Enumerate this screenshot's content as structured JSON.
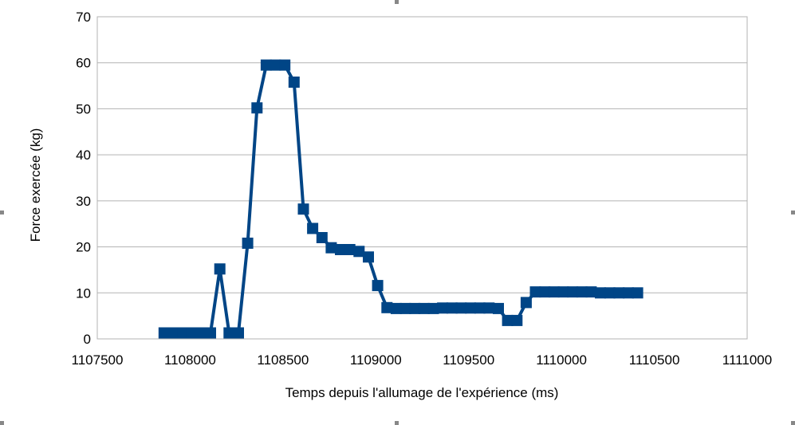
{
  "chart_data": {
    "type": "line",
    "xlabel": "Temps depuis l'allumage de l'expérience (ms)",
    "ylabel": "Force exercée (kg)",
    "xlim": [
      1107500,
      1111000
    ],
    "ylim": [
      0,
      70
    ],
    "x_ticks": [
      1107500,
      1108000,
      1108500,
      1109000,
      1109500,
      1110000,
      1110500,
      1111000
    ],
    "y_ticks": [
      0,
      10,
      20,
      30,
      40,
      50,
      60,
      70
    ],
    "grid": "horizontal",
    "legend": "none",
    "marker": "square",
    "color": "#004586",
    "series": [
      {
        "x": [
          1107860,
          1107910,
          1107960,
          1108010,
          1108060,
          1108110,
          1108160,
          1108210,
          1108260,
          1108310,
          1108360,
          1108410,
          1108460,
          1108510,
          1108560,
          1108610,
          1108660,
          1108710,
          1108760,
          1108810,
          1108860,
          1108910,
          1108960,
          1109010,
          1109060,
          1109110,
          1109160,
          1109210,
          1109260,
          1109310,
          1109360,
          1109410,
          1109460,
          1109510,
          1109560,
          1109610,
          1109660,
          1109710,
          1109760,
          1109810,
          1109860,
          1109910,
          1109960,
          1110010,
          1110060,
          1110110,
          1110160,
          1110210,
          1110260,
          1110310,
          1110360,
          1110410
        ],
        "y": [
          1.3,
          1.3,
          1.3,
          1.3,
          1.3,
          1.3,
          15.2,
          1.3,
          1.3,
          20.8,
          50.2,
          59.5,
          59.5,
          59.5,
          55.8,
          28.2,
          24.0,
          22.0,
          19.8,
          19.4,
          19.4,
          19.0,
          17.8,
          11.6,
          6.8,
          6.6,
          6.6,
          6.6,
          6.6,
          6.6,
          6.7,
          6.7,
          6.7,
          6.7,
          6.7,
          6.7,
          6.6,
          4.0,
          4.0,
          7.9,
          10.2,
          10.2,
          10.2,
          10.2,
          10.2,
          10.2,
          10.2,
          10.0,
          10.0,
          10.0,
          10.0,
          10.0
        ]
      }
    ]
  }
}
